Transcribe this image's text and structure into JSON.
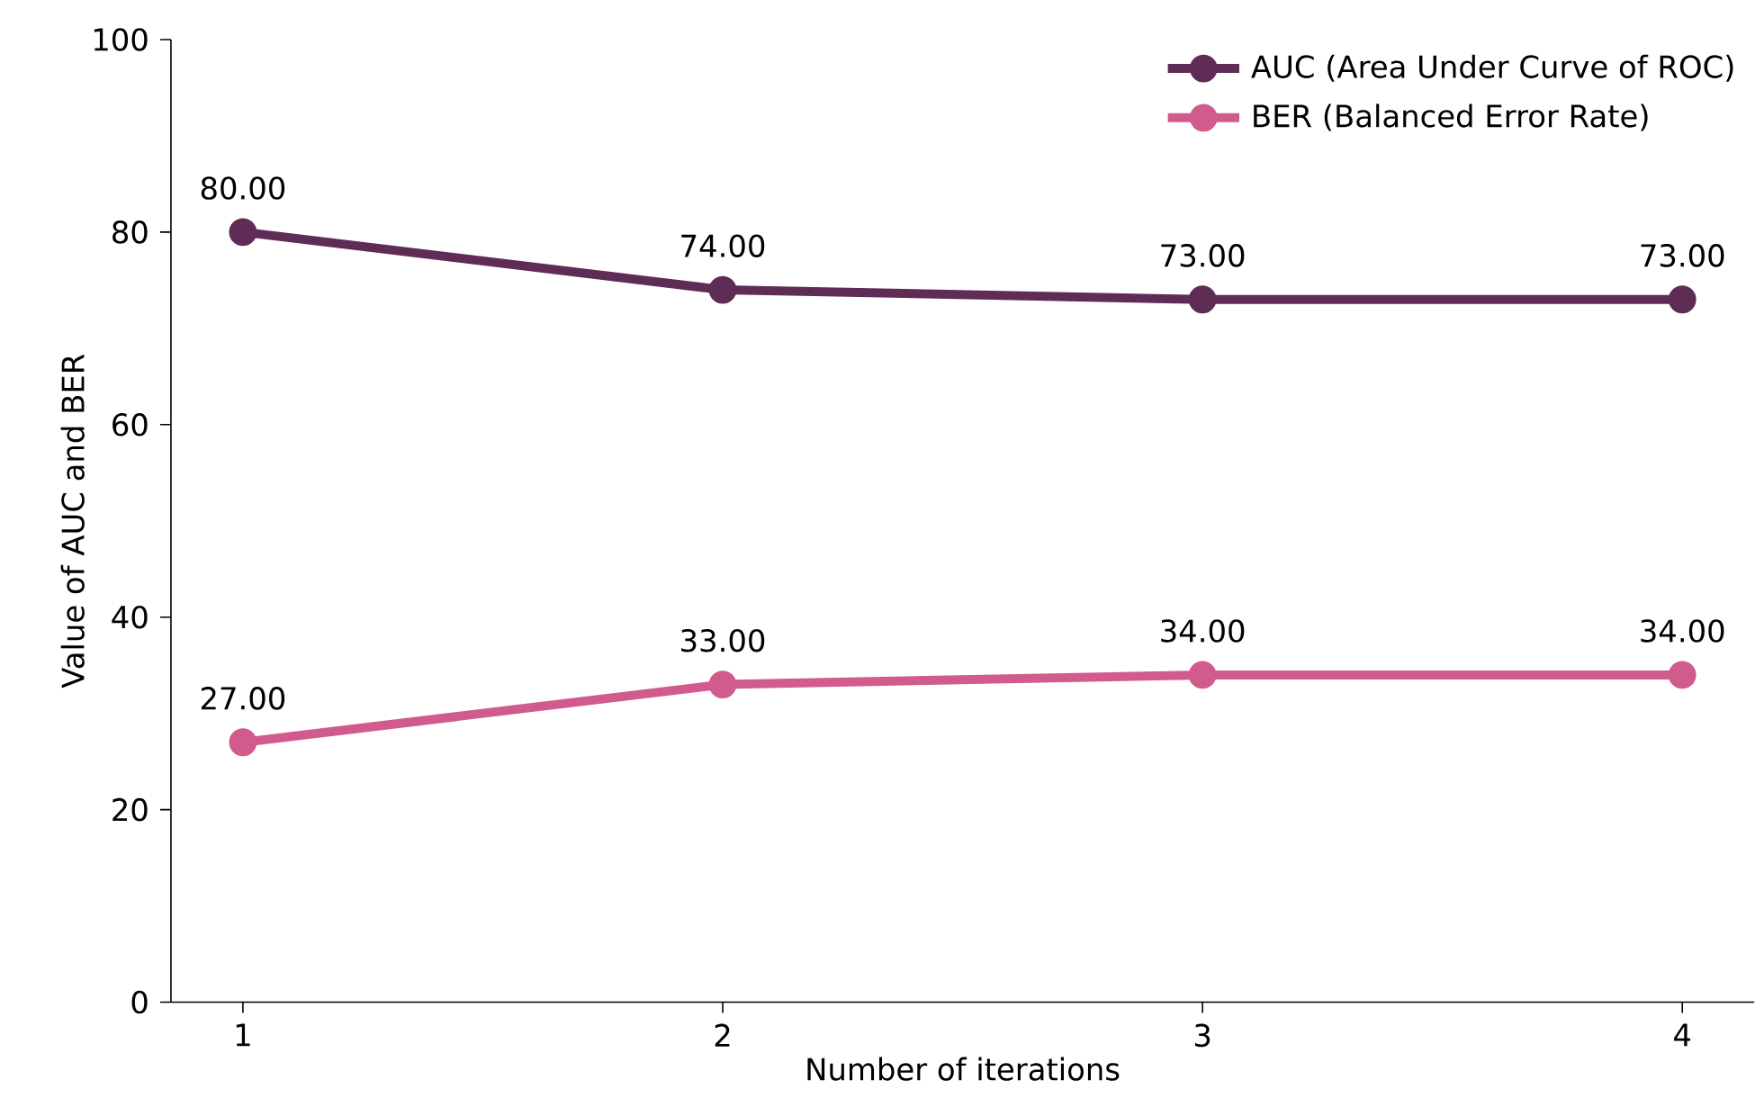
{
  "chart_data": {
    "type": "line",
    "xlabel": "Number of iterations",
    "ylabel": "Value of AUC and BER",
    "x": [
      1,
      2,
      3,
      4
    ],
    "xlim": [
      0.85,
      4.15
    ],
    "xticks": [
      1,
      2,
      3,
      4
    ],
    "ylim": [
      0,
      100
    ],
    "yticks": [
      0,
      20,
      40,
      60,
      80,
      100
    ],
    "series": [
      {
        "name": "AUC (Area Under Curve of ROC)",
        "color": "#5f2c55",
        "values": [
          80,
          74,
          73,
          73
        ],
        "value_labels": [
          "80.00",
          "74.00",
          "73.00",
          "73.00"
        ]
      },
      {
        "name": "BER (Balanced Error Rate)",
        "color": "#d05b8c",
        "values": [
          27,
          33,
          34,
          34
        ],
        "value_labels": [
          "27.00",
          "33.00",
          "34.00",
          "34.00"
        ]
      }
    ],
    "legend": "top right",
    "marker": "circle",
    "line_style": "solid",
    "grid": false
  }
}
